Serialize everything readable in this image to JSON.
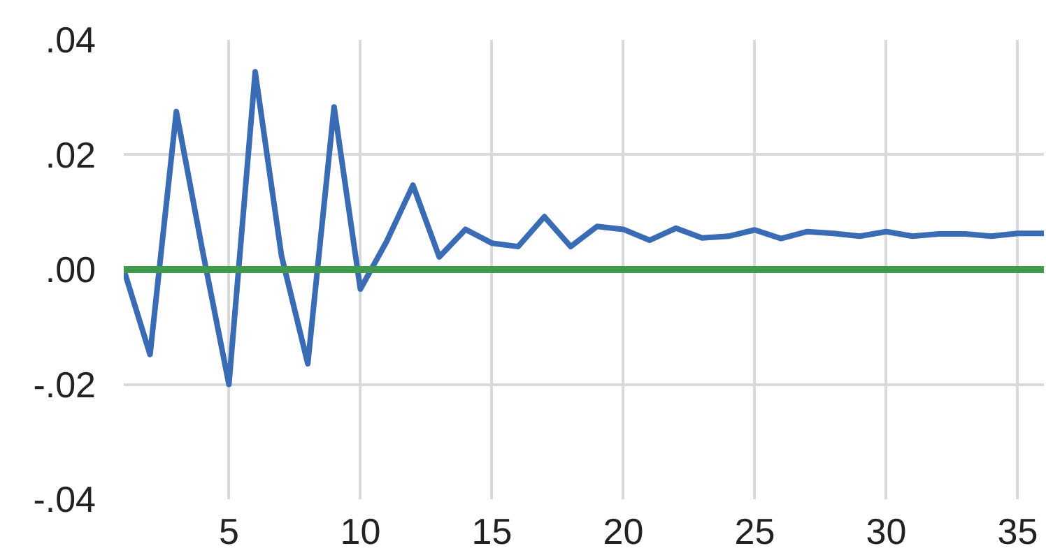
{
  "chart_data": {
    "type": "line",
    "x": [
      1,
      2,
      3,
      4,
      5,
      6,
      7,
      8,
      9,
      10,
      11,
      12,
      13,
      14,
      15,
      16,
      17,
      18,
      19,
      20,
      21,
      22,
      23,
      24,
      25,
      26,
      27,
      28,
      29,
      30,
      31,
      32,
      33,
      34,
      35,
      36
    ],
    "series": [
      {
        "color": "#3a6bb5",
        "values": [
          0,
          -0.0148,
          0.0275,
          0.0032,
          -0.02,
          0.0344,
          0.0024,
          -0.0164,
          0.0283,
          -0.0034,
          0.0049,
          0.0147,
          0.0022,
          0.007,
          0.0046,
          0.004,
          0.0092,
          0.004,
          0.0075,
          0.007,
          0.0051,
          0.0072,
          0.0055,
          0.0058,
          0.0069,
          0.0054,
          0.0066,
          0.0063,
          0.0058,
          0.0066,
          0.0058,
          0.0062,
          0.0062,
          0.0058,
          0.0063,
          0.0063
        ]
      }
    ],
    "ref_lines": [
      {
        "axis": "y",
        "value": 0,
        "label": null,
        "color": "#3f9a4c"
      }
    ],
    "xlim": [
      1,
      36
    ],
    "xticks": [
      5,
      10,
      15,
      20,
      25,
      30,
      35
    ],
    "ylim": [
      -0.04,
      0.04
    ],
    "yticks": [
      {
        "value": -0.04,
        "label": "-.04"
      },
      {
        "value": -0.02,
        "label": "-.02"
      },
      {
        "value": 0,
        "label": ".00"
      },
      {
        "value": 0.02,
        "label": ".02"
      },
      {
        "value": 0.04,
        "label": ".04"
      }
    ],
    "grid": true,
    "marker": "none",
    "line_style": "solid"
  }
}
